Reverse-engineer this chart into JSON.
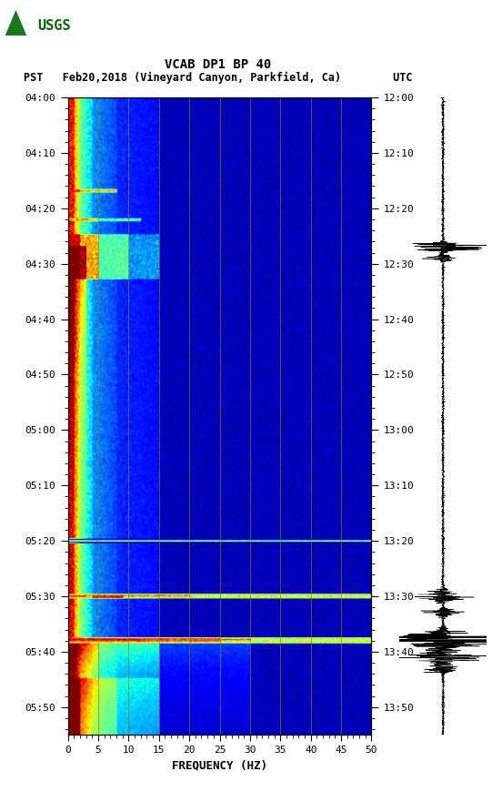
{
  "title_line1": "VCAB DP1 BP 40",
  "title_line2": "PST   Feb20,2018 (Vineyard Canyon, Parkfield, Ca)        UTC",
  "xlabel": "FREQUENCY (HZ)",
  "freq_min": 0,
  "freq_max": 50,
  "freq_ticks": [
    0,
    5,
    10,
    15,
    20,
    25,
    30,
    35,
    40,
    45,
    50
  ],
  "freq_gridlines": [
    5,
    10,
    15,
    20,
    25,
    30,
    35,
    40,
    45
  ],
  "ytick_labels_left": [
    "04:00",
    "04:10",
    "04:20",
    "04:30",
    "04:40",
    "04:50",
    "05:00",
    "05:10",
    "05:20",
    "05:30",
    "05:40",
    "05:50"
  ],
  "ytick_labels_right": [
    "12:00",
    "12:10",
    "12:20",
    "12:30",
    "12:40",
    "12:50",
    "13:00",
    "13:10",
    "13:20",
    "13:30",
    "13:40",
    "13:50"
  ],
  "background_color": "#ffffff",
  "fig_width": 5.52,
  "fig_height": 8.92,
  "dpi": 100,
  "usgs_logo_color": "#006400",
  "colormap": "jet",
  "grid_color": "#8B8000",
  "grid_alpha": 0.8,
  "n_time_steps": 440,
  "n_freq_steps": 300
}
